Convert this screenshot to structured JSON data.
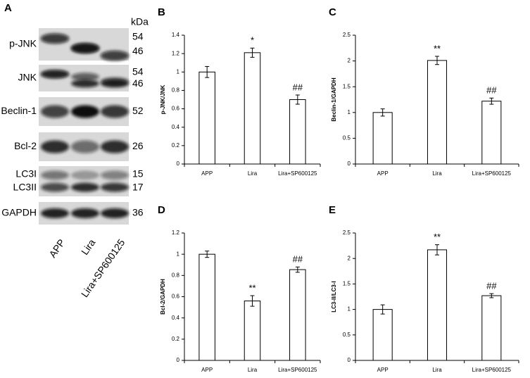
{
  "blot": {
    "panel_label": "A",
    "unit": "kDa",
    "rows": [
      {
        "labels": [
          "p-JNK"
        ],
        "sizes": [
          54,
          46
        ]
      },
      {
        "labels": [
          "JNK"
        ],
        "sizes": [
          54,
          46
        ]
      },
      {
        "labels": [
          "Beclin-1"
        ],
        "sizes": [
          52
        ]
      },
      {
        "labels": [
          "Bcl-2"
        ],
        "sizes": [
          26
        ]
      },
      {
        "labels": [
          "LC3I",
          "LC3II"
        ],
        "sizes": [
          15,
          17
        ]
      },
      {
        "labels": [
          "GAPDH"
        ],
        "sizes": [
          36
        ]
      }
    ],
    "lanes": [
      "APP",
      "Lira",
      "Lira+SP600125"
    ]
  },
  "chart_data": [
    {
      "type": "bar",
      "panel_label": "B",
      "y_label": "p-JNK/JNK",
      "categories": [
        "APP",
        "Lira",
        "Lira+SP600125"
      ],
      "values": [
        1.0,
        1.21,
        0.7
      ],
      "errors": [
        0.06,
        0.05,
        0.05
      ],
      "annotations": [
        null,
        "*",
        "##"
      ],
      "color": "#ffffff",
      "ylim": [
        0,
        1.4
      ],
      "yticks": [
        0,
        0.2,
        0.4,
        0.6,
        0.8,
        1,
        1.2,
        1.4
      ]
    },
    {
      "type": "bar",
      "panel_label": "C",
      "y_label": "Beclin-1/GAPDH",
      "categories": [
        "APP",
        "Lira",
        "Lira+SP600125"
      ],
      "values": [
        1.0,
        2.01,
        1.22
      ],
      "errors": [
        0.07,
        0.08,
        0.06
      ],
      "annotations": [
        null,
        "**",
        "##"
      ],
      "color": "#ffffff",
      "ylim": [
        0,
        2.5
      ],
      "yticks": [
        0,
        0.5,
        1,
        1.5,
        2,
        2.5
      ]
    },
    {
      "type": "bar",
      "panel_label": "D",
      "y_label": "Bcl-2/GAPDH",
      "categories": [
        "APP",
        "Lira",
        "Lira+SP600125"
      ],
      "values": [
        1.0,
        0.56,
        0.855
      ],
      "errors": [
        0.03,
        0.05,
        0.025
      ],
      "annotations": [
        null,
        "**",
        "##"
      ],
      "color": "#ffffff",
      "ylim": [
        0,
        1.2
      ],
      "yticks": [
        0,
        0.2,
        0.4,
        0.6,
        0.8,
        1,
        1.2
      ]
    },
    {
      "type": "bar",
      "panel_label": "E",
      "y_label": "LC3-II/LC3-I",
      "categories": [
        "APP",
        "Lira",
        "Lira+SP600125"
      ],
      "values": [
        1.0,
        2.17,
        1.27
      ],
      "errors": [
        0.09,
        0.1,
        0.04
      ],
      "annotations": [
        null,
        "**",
        "##"
      ],
      "color": "#ffffff",
      "ylim": [
        0,
        2.5
      ],
      "yticks": [
        0,
        0.5,
        1,
        1.5,
        2,
        2.5
      ]
    }
  ]
}
